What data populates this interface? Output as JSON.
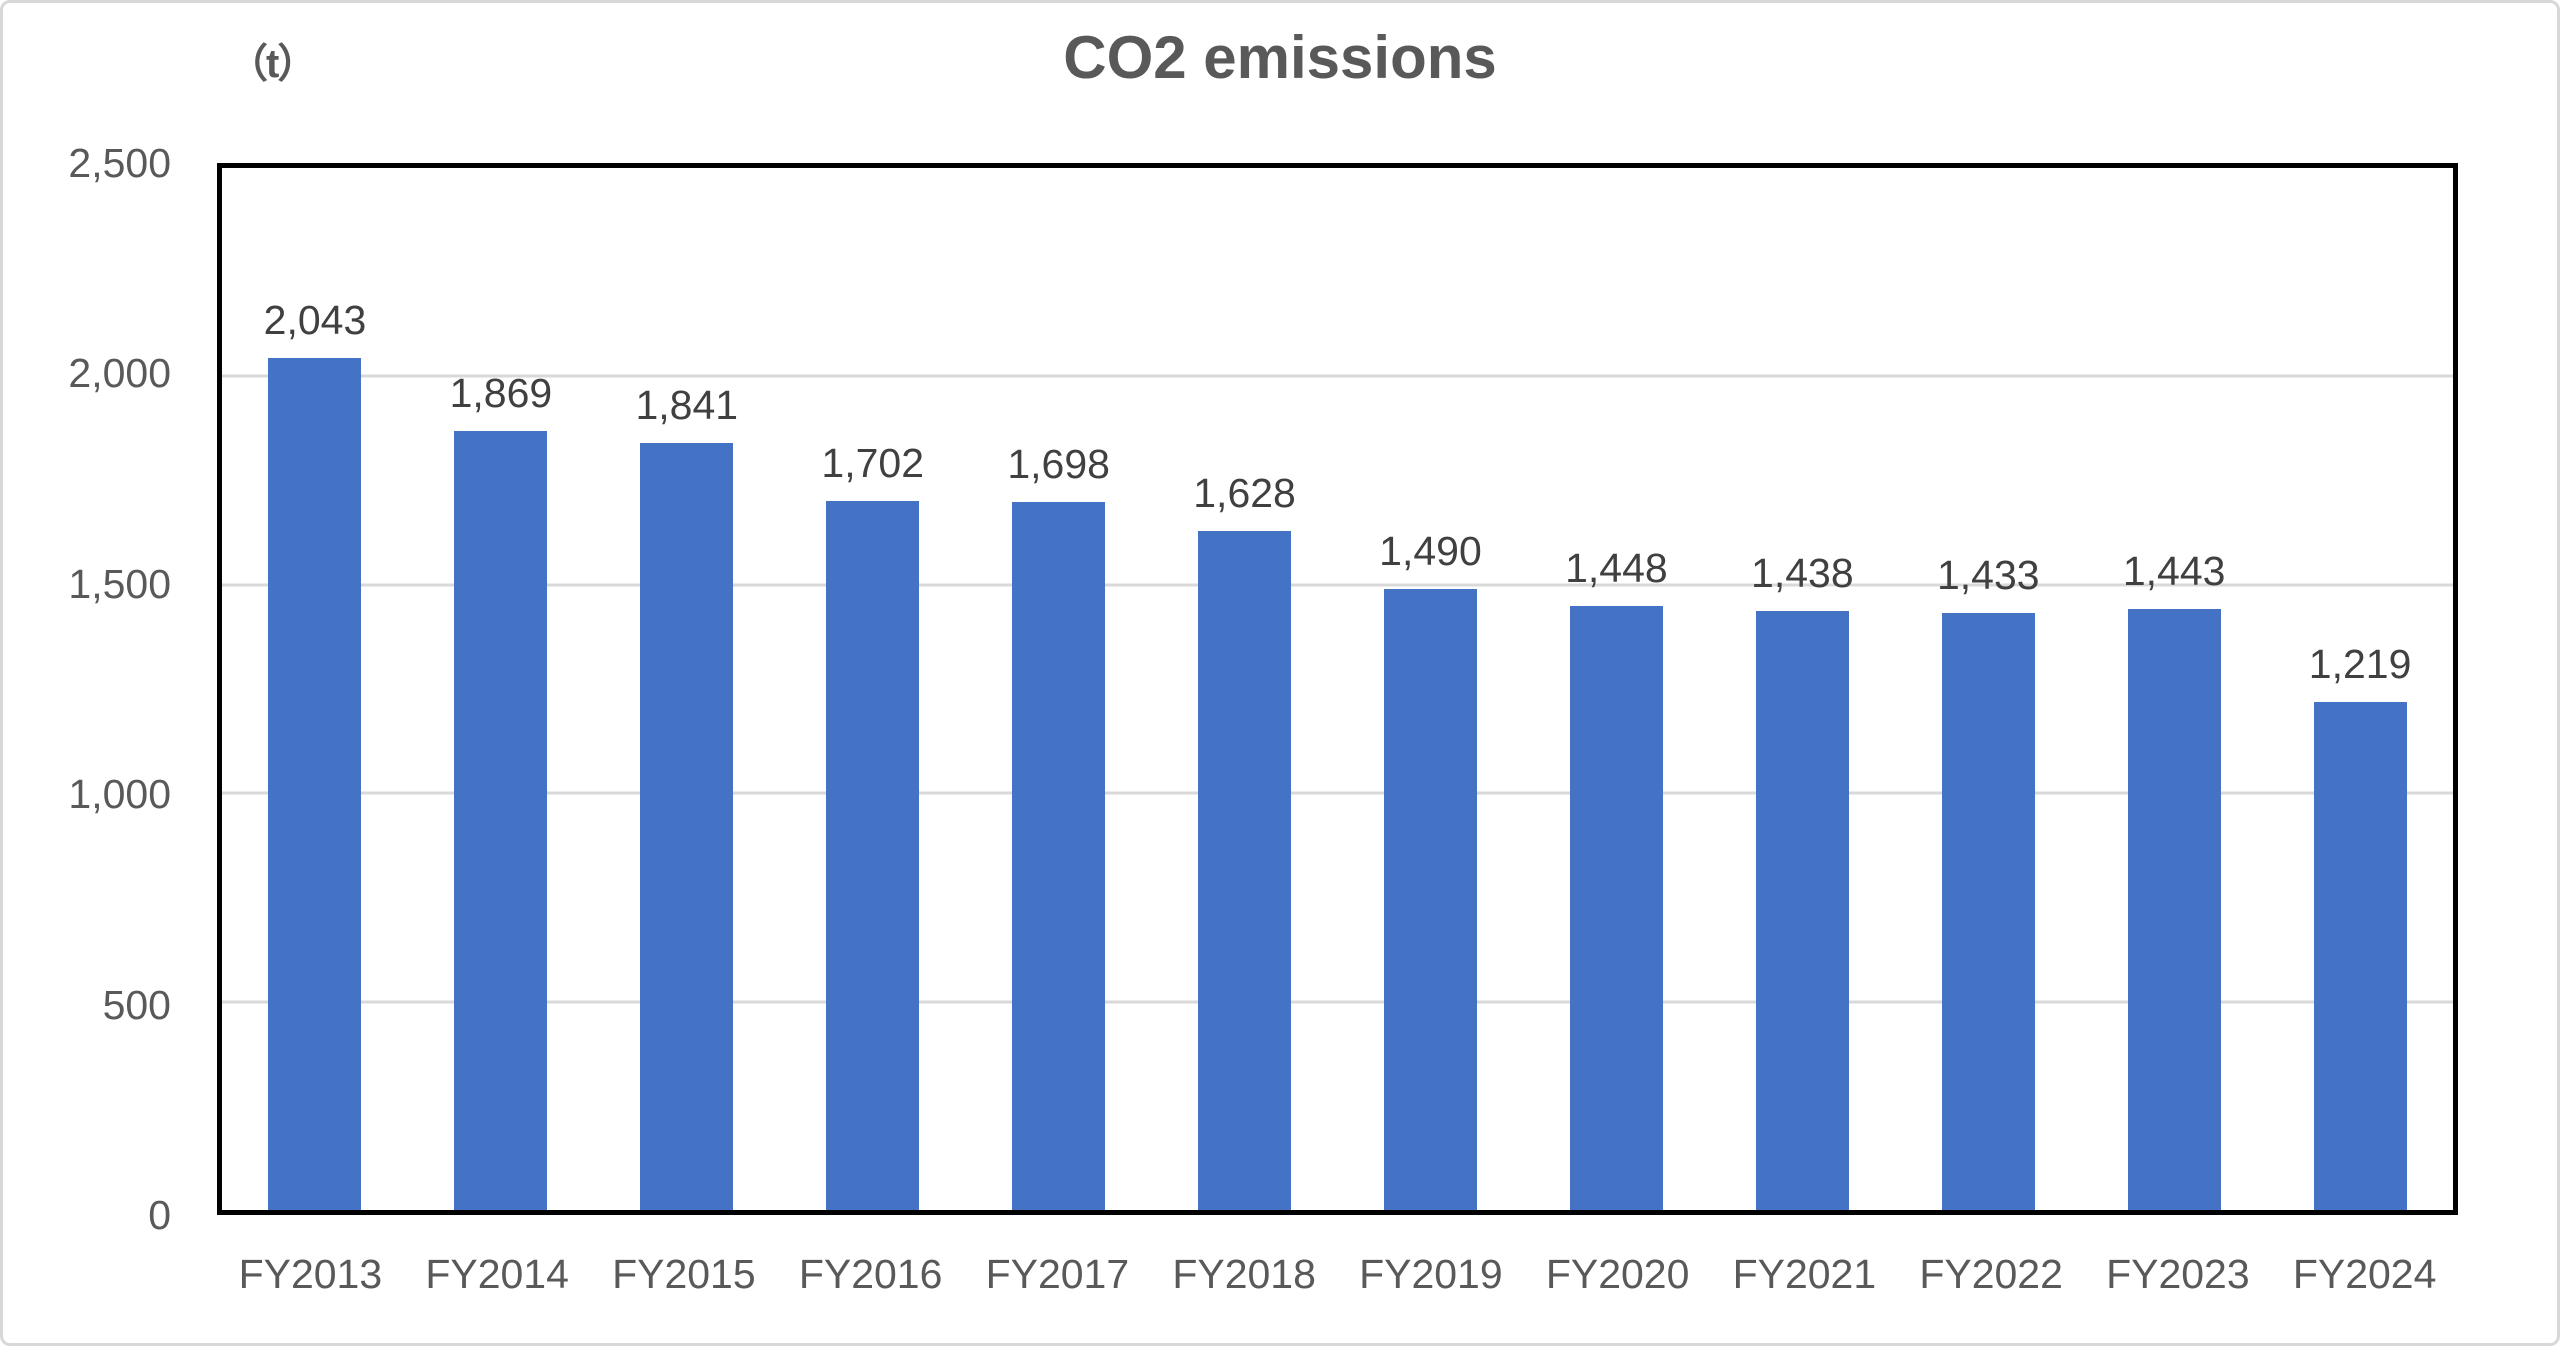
{
  "figure": {
    "unit_label": "（t）",
    "title": "CO2 emissions"
  },
  "chart_data": {
    "type": "bar",
    "title": "CO2 emissions",
    "unit_label": "（t）",
    "xlabel": "",
    "ylabel": "t",
    "categories": [
      "FY2013",
      "FY2014",
      "FY2015",
      "FY2016",
      "FY2017",
      "FY2018",
      "FY2019",
      "FY2020",
      "FY2021",
      "FY2022",
      "FY2023",
      "FY2024"
    ],
    "values": [
      2043,
      1869,
      1841,
      1702,
      1698,
      1628,
      1490,
      1448,
      1438,
      1433,
      1443,
      1219
    ],
    "value_labels": [
      "2,043",
      "1,869",
      "1,841",
      "1,702",
      "1,698",
      "1,628",
      "1,490",
      "1,448",
      "1,438",
      "1,433",
      "1,443",
      "1,219"
    ],
    "ylim": [
      0,
      2500
    ],
    "y_ticks": [
      {
        "value": 0,
        "label": "0"
      },
      {
        "value": 500,
        "label": "500"
      },
      {
        "value": 1000,
        "label": "1,000"
      },
      {
        "value": 1500,
        "label": "1,500"
      },
      {
        "value": 2000,
        "label": "2,000"
      },
      {
        "value": 2500,
        "label": "2,500"
      }
    ],
    "grid": true,
    "legend": "none",
    "bar_color": "#4472C4",
    "colors": {
      "bar": "#4472C4",
      "gridline": "#d9d9d9",
      "plot_border": "#000000",
      "figure_border": "#d8d8d8",
      "title_text": "#595959",
      "tick_text": "#595959",
      "data_label_text": "#404040",
      "background": "#ffffff"
    }
  }
}
